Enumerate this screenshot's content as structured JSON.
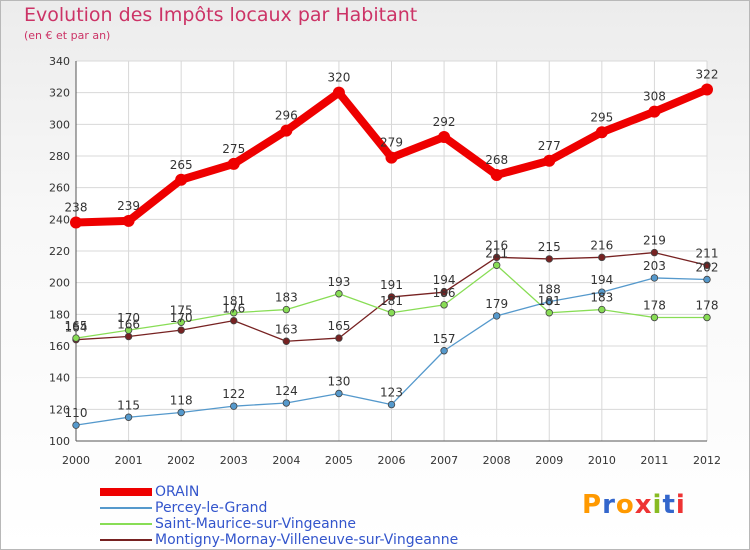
{
  "title": "Evolution des Impôts locaux par Habitant",
  "subtitle": "(en € et par an)",
  "logo": "Proxiti",
  "chart_data": {
    "type": "line",
    "x": [
      2000,
      2001,
      2002,
      2003,
      2004,
      2005,
      2006,
      2007,
      2008,
      2009,
      2010,
      2011,
      2012
    ],
    "ylim": [
      100,
      340
    ],
    "yticks": [
      100,
      120,
      140,
      160,
      180,
      200,
      220,
      240,
      260,
      280,
      300,
      320,
      340
    ],
    "grid": true,
    "legend_position": "bottom-left",
    "series": [
      {
        "name": "ORAIN",
        "color": "#ee0000",
        "values": [
          238,
          239,
          265,
          275,
          296,
          320,
          279,
          292,
          268,
          277,
          295,
          308,
          322
        ],
        "labels": [
          "238",
          "239",
          "265",
          "275",
          "296",
          "320",
          "279",
          "292",
          "268",
          "277",
          "295",
          "308",
          "322"
        ]
      },
      {
        "name": "Percey-le-Grand",
        "color": "#5599cc",
        "values": [
          110,
          115,
          118,
          122,
          124,
          130,
          123,
          157,
          179,
          188,
          194,
          203,
          202
        ],
        "labels": [
          "110",
          "115",
          "118",
          "122",
          "124",
          "130",
          "123",
          "157",
          "179",
          "188",
          "194",
          "203",
          "202"
        ]
      },
      {
        "name": "Saint-Maurice-sur-Vingeanne",
        "color": "#88dd55",
        "values": [
          165,
          170,
          175,
          181,
          183,
          193,
          181,
          186,
          211,
          181,
          183,
          178,
          178
        ],
        "labels": [
          "165",
          "170",
          "175",
          "181",
          "183",
          "193",
          "181",
          "186",
          "211",
          "181",
          "183",
          "178",
          "178"
        ]
      },
      {
        "name": "Montigny-Mornay-Villeneuve-sur-Vingeanne",
        "color": "#772222",
        "values": [
          164,
          166,
          170,
          176,
          163,
          165,
          191,
          194,
          216,
          215,
          216,
          219,
          211
        ],
        "labels": [
          "164",
          "166",
          "170",
          "176",
          "163",
          "165",
          "191",
          "194",
          "216",
          "215",
          "216",
          "219",
          "211"
        ]
      }
    ]
  }
}
